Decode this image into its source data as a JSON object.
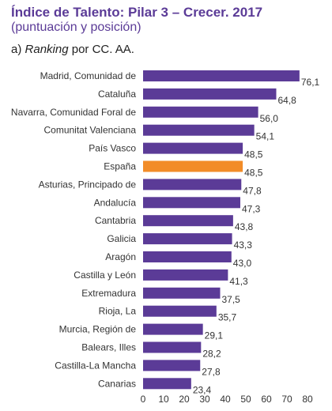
{
  "header": {
    "title": "Índice de Talento: Pilar 3 – Crecer. 2017",
    "subtitle": "(puntuación y posición)",
    "panel_prefix": "a) ",
    "panel_italic": "Ranking",
    "panel_suffix": " por CC. AA."
  },
  "colors": {
    "title": "#5b3b97",
    "bar": "#5b3b97",
    "highlight": "#f28c28",
    "text": "#333333"
  },
  "chart_data": {
    "type": "bar",
    "orientation": "horizontal",
    "categories": [
      "Madrid, Comunidad de",
      "Cataluña",
      "Navarra, Comunidad Foral de",
      "Comunitat Valenciana",
      "País Vasco",
      "España",
      "Asturias, Principado de",
      "Andalucía",
      "Cantabria",
      "Galicia",
      "Aragón",
      "Castilla y León",
      "Extremadura",
      "Rioja, La",
      "Murcia, Región de",
      "Balears, Illes",
      "Castilla-La Mancha",
      "Canarias"
    ],
    "values": [
      76.1,
      64.8,
      56.0,
      54.1,
      48.5,
      48.5,
      47.8,
      47.3,
      43.8,
      43.3,
      43.0,
      41.3,
      37.5,
      35.7,
      29.1,
      28.2,
      27.8,
      23.4
    ],
    "value_labels": [
      "76,1",
      "64,8",
      "56,0",
      "54,1",
      "48,5",
      "48,5",
      "47,8",
      "47,3",
      "43,8",
      "43,3",
      "43,0",
      "41,3",
      "37,5",
      "35,7",
      "29,1",
      "28,2",
      "27,8",
      "23,4"
    ],
    "highlight_category": "España",
    "xlim": [
      0,
      80
    ],
    "xticks": [
      0,
      10,
      20,
      30,
      40,
      50,
      60,
      70,
      80
    ],
    "grid": false
  }
}
